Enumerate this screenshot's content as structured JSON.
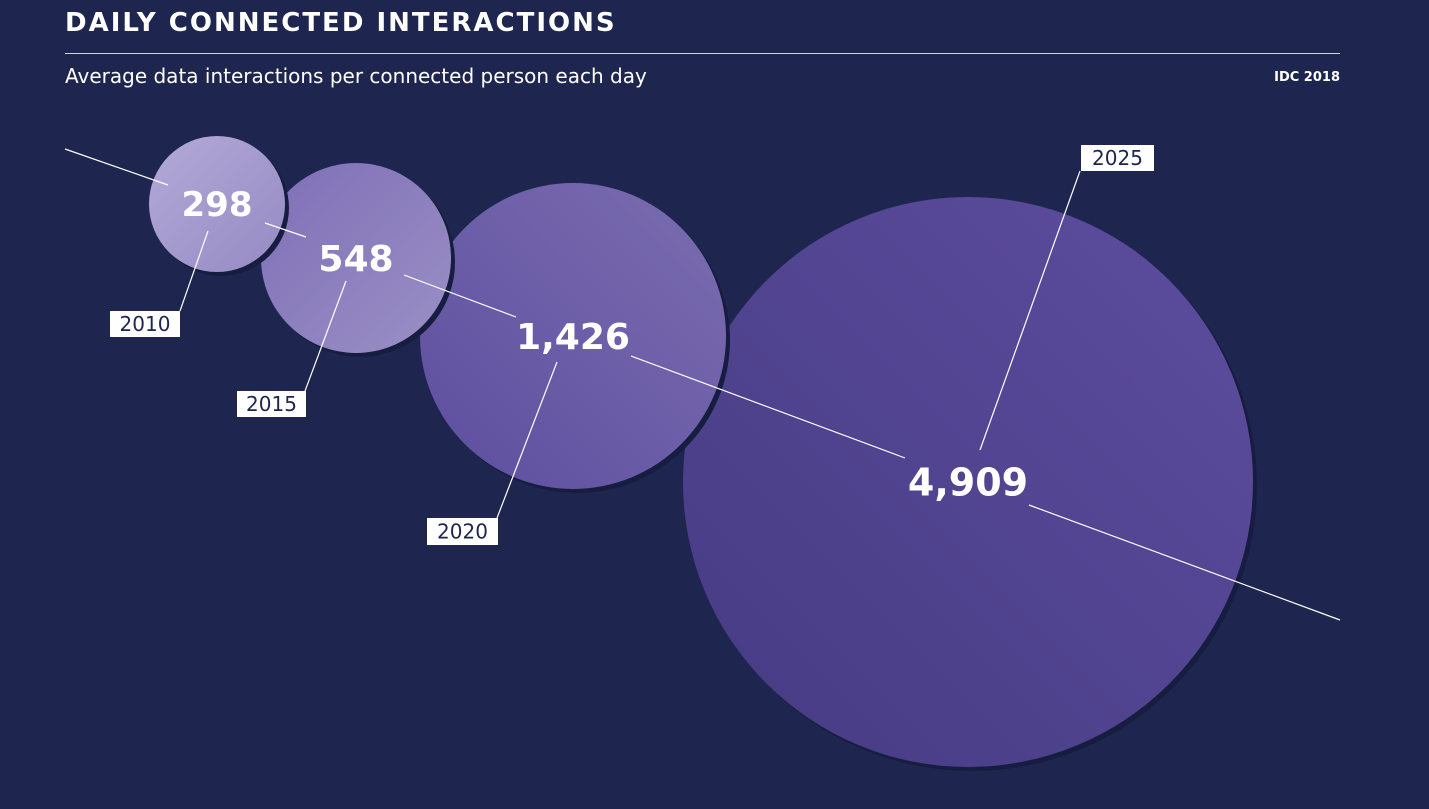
{
  "header": {
    "title": "DAILY CONNECTED INTERACTIONS",
    "subtitle": "Average data interactions per connected person each day",
    "source": "IDC 2018"
  },
  "colors": {
    "background": "#1e2650",
    "bubble_2010": "#a69bd0",
    "bubble_2015": "#8f7fc0",
    "bubble_2020": "#7565ad",
    "bubble_2025": "#5a4b98",
    "line": "#ffffff",
    "label_box": "#ffffff"
  },
  "chart_data": {
    "type": "bubble",
    "title": "DAILY CONNECTED INTERACTIONS",
    "subtitle": "Average data interactions per connected person each day",
    "categories": [
      "2010",
      "2015",
      "2020",
      "2025"
    ],
    "values": [
      298,
      548,
      1426,
      4909
    ],
    "value_labels": [
      "298",
      "548",
      "1,426",
      "4,909"
    ]
  }
}
